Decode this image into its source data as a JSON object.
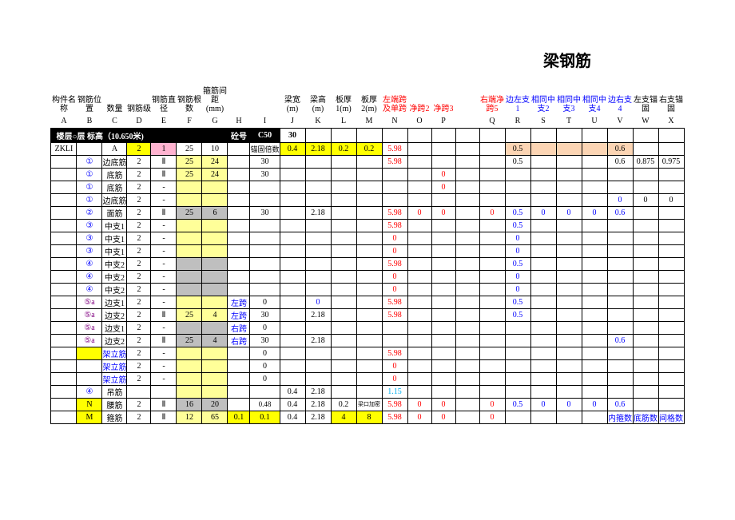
{
  "title": "梁钢筋",
  "header1": [
    "构件名称",
    "钢筋位置",
    "数量",
    "钢筋级",
    "钢筋直径",
    "钢筋根数",
    "箍筋间距(mm)",
    "",
    "梁宽(m)",
    "梁高(m)",
    "板厚1(m)",
    "板厚2(m)",
    "左端跨及单跨",
    "净跨2",
    "净跨3",
    "",
    "右端净跨5",
    "边左支1",
    "相同中支2",
    "相同中支3",
    "相同中支4",
    "边右支4",
    "左支锚固",
    "右支锚固"
  ],
  "header1_colors": [
    "",
    "",
    "",
    "",
    "",
    "",
    "",
    "",
    "",
    "",
    "",
    "",
    "red",
    "red",
    "red",
    "",
    "red",
    "blue",
    "blue",
    "blue",
    "blue",
    "blue",
    "",
    ""
  ],
  "letters": [
    "A",
    "B",
    "C",
    "D",
    "E",
    "F",
    "G",
    "H",
    "I",
    "J",
    "K",
    "L",
    "M",
    "N",
    "O",
    "P",
    "",
    "Q",
    "R",
    "S",
    "T",
    "U",
    "V",
    "W",
    "X"
  ],
  "floor_label": "楼层○层     标高（10.650米)",
  "floor_lab1": "砼号",
  "floor_lab2": "C50",
  "floor_30": "30",
  "rows": [
    {
      "cells": [
        "ZKLI",
        "",
        "A",
        "",
        "",
        "25",
        "10",
        "",
        "锚固倍数",
        "0.4",
        "2.18",
        "0.2",
        "0.2",
        "5.98",
        "",
        "",
        "",
        "",
        "0.5",
        "",
        "",
        "",
        "0.6",
        "",
        ""
      ],
      "bg": {
        "3": "bg-yellow",
        "4": "bg-pink",
        "9": "bg-yellow",
        "10": "bg-yellow",
        "11": "bg-yellow",
        "12": "bg-yellow",
        "18": "bg-orange",
        "19": "bg-orange",
        "20": "bg-orange",
        "21": "bg-orange",
        "22": "bg-orange"
      },
      "extra": {
        "3": "2",
        "4": "1"
      },
      "fg": {
        "13": "red"
      }
    },
    {
      "cells": [
        "",
        "①",
        "边底筋",
        "2",
        "Ⅱ",
        "25",
        "24",
        "",
        "30",
        "",
        "",
        "",
        "",
        "5.98",
        "",
        "",
        "",
        "",
        "0.5",
        "",
        "",
        "",
        "0.6",
        "0.875",
        "0.975"
      ],
      "bg": {
        "5": "bg-yellow2",
        "6": "bg-yellow2"
      },
      "fg": {
        "13": "red",
        "1": "blue"
      }
    },
    {
      "cells": [
        "",
        "①",
        "底筋",
        "2",
        "Ⅱ",
        "25",
        "24",
        "",
        "30",
        "",
        "",
        "",
        "",
        "",
        "",
        "0",
        "",
        "",
        "",
        "",
        "",
        "",
        "",
        "",
        ""
      ],
      "bg": {
        "5": "bg-yellow2",
        "6": "bg-yellow2"
      },
      "fg": {
        "15": "red",
        "1": "blue"
      }
    },
    {
      "cells": [
        "",
        "①",
        "底筋",
        "2",
        "-",
        "",
        "",
        "",
        "",
        "",
        "",
        "",
        "",
        "",
        "",
        "0",
        "",
        "",
        "",
        "",
        "",
        "",
        "",
        "",
        ""
      ],
      "bg": {
        "5": "bg-yellow2",
        "6": "bg-yellow2"
      },
      "fg": {
        "15": "red",
        "1": "blue"
      }
    },
    {
      "cells": [
        "",
        "①",
        "边底筋",
        "2",
        "-",
        "",
        "",
        "",
        "",
        "",
        "",
        "",
        "",
        "",
        "",
        "",
        "",
        "",
        "",
        "",
        "",
        "",
        "0",
        "0",
        "0"
      ],
      "bg": {
        "5": "bg-yellow2",
        "6": "bg-yellow2"
      },
      "fg": {
        "22": "blue",
        "23": "",
        "24": "",
        "1": "blue"
      }
    },
    {
      "cells": [
        "",
        "②",
        "面筋",
        "2",
        "Ⅱ",
        "25",
        "6",
        "",
        "30",
        "",
        "2.18",
        "",
        "",
        "5.98",
        "0",
        "0",
        "",
        "0",
        "0.5",
        "0",
        "0",
        "0",
        "0.6",
        "",
        ""
      ],
      "bg": {
        "5": "bg-grey",
        "6": "bg-grey"
      },
      "fg": {
        "13": "red",
        "14": "red",
        "15": "red",
        "17": "red",
        "18": "blue",
        "19": "blue",
        "20": "blue",
        "21": "blue",
        "22": "blue",
        "1": "blue"
      }
    },
    {
      "cells": [
        "",
        "③",
        "中支1",
        "2",
        "-",
        "",
        "",
        "",
        "",
        "",
        "",
        "",
        "",
        "5.98",
        "",
        "",
        "",
        "",
        "0.5",
        "",
        "",
        "",
        "",
        "",
        ""
      ],
      "bg": {
        "5": "bg-yellow2",
        "6": "bg-yellow2"
      },
      "fg": {
        "13": "red",
        "18": "blue",
        "1": "blue"
      }
    },
    {
      "cells": [
        "",
        "③",
        "中支1",
        "2",
        "-",
        "",
        "",
        "",
        "",
        "",
        "",
        "",
        "",
        "0",
        "",
        "",
        "",
        "",
        "0",
        "",
        "",
        "",
        "",
        "",
        ""
      ],
      "bg": {
        "5": "bg-yellow2",
        "6": "bg-yellow2"
      },
      "fg": {
        "13": "red",
        "18": "blue",
        "1": "blue"
      }
    },
    {
      "cells": [
        "",
        "③",
        "中支1",
        "2",
        "-",
        "",
        "",
        "",
        "",
        "",
        "",
        "",
        "",
        "0",
        "",
        "",
        "",
        "",
        "0",
        "",
        "",
        "",
        "",
        "",
        ""
      ],
      "bg": {
        "5": "bg-yellow2",
        "6": "bg-yellow2"
      },
      "fg": {
        "13": "red",
        "18": "blue",
        "1": "blue"
      }
    },
    {
      "cells": [
        "",
        "④",
        "中支2",
        "2",
        "-",
        "",
        "",
        "",
        "",
        "",
        "",
        "",
        "",
        "5.98",
        "",
        "",
        "",
        "",
        "0.5",
        "",
        "",
        "",
        "",
        "",
        ""
      ],
      "bg": {
        "5": "bg-grey",
        "6": "bg-grey"
      },
      "fg": {
        "13": "red",
        "18": "blue",
        "1": "blue"
      }
    },
    {
      "cells": [
        "",
        "④",
        "中支2",
        "2",
        "-",
        "",
        "",
        "",
        "",
        "",
        "",
        "",
        "",
        "0",
        "",
        "",
        "",
        "",
        "0",
        "",
        "",
        "",
        "",
        "",
        ""
      ],
      "bg": {
        "5": "bg-grey",
        "6": "bg-grey"
      },
      "fg": {
        "13": "red",
        "18": "blue",
        "1": "blue"
      }
    },
    {
      "cells": [
        "",
        "④",
        "中支2",
        "2",
        "-",
        "",
        "",
        "",
        "",
        "",
        "",
        "",
        "",
        "0",
        "",
        "",
        "",
        "",
        "0",
        "",
        "",
        "",
        "",
        "",
        ""
      ],
      "bg": {
        "5": "bg-grey",
        "6": "bg-grey"
      },
      "fg": {
        "13": "red",
        "18": "blue",
        "1": "blue"
      }
    },
    {
      "cells": [
        "",
        "⑤a",
        "边支1",
        "2",
        "-",
        "",
        "",
        "左跨",
        "0",
        "",
        "0",
        "",
        "",
        "5.98",
        "",
        "",
        "",
        "",
        "0.5",
        "",
        "",
        "",
        "",
        "",
        ""
      ],
      "bg": {
        "5": "bg-yellow2",
        "6": "bg-yellow2"
      },
      "fg": {
        "13": "red",
        "18": "blue",
        "1": "purple",
        "7": "blue",
        "10": "blue"
      }
    },
    {
      "cells": [
        "",
        "⑤a",
        "边支2",
        "2",
        "Ⅱ",
        "25",
        "4",
        "左跨",
        "30",
        "",
        "2.18",
        "",
        "",
        "5.98",
        "",
        "",
        "",
        "",
        "0.5",
        "",
        "",
        "",
        "",
        "",
        ""
      ],
      "bg": {
        "5": "bg-yellow2",
        "6": "bg-yellow2"
      },
      "fg": {
        "13": "red",
        "18": "blue",
        "1": "purple",
        "7": "blue"
      }
    },
    {
      "cells": [
        "",
        "⑤a",
        "边支1",
        "2",
        "-",
        "",
        "",
        "右跨",
        "0",
        "",
        "",
        "",
        "",
        "",
        "",
        "",
        "",
        "",
        "",
        "",
        "",
        "",
        "",
        "",
        ""
      ],
      "bg": {
        "5": "bg-grey",
        "6": "bg-grey"
      },
      "fg": {
        "1": "purple",
        "7": "blue"
      }
    },
    {
      "cells": [
        "",
        "⑤a",
        "边支2",
        "2",
        "Ⅱ",
        "25",
        "4",
        "右跨",
        "30",
        "",
        "2.18",
        "",
        "",
        "",
        "",
        "",
        "",
        "",
        "",
        "",
        "",
        "",
        "0.6",
        "",
        ""
      ],
      "bg": {
        "5": "bg-grey",
        "6": "bg-grey"
      },
      "fg": {
        "1": "purple",
        "7": "blue",
        "22": "blue"
      }
    },
    {
      "cells": [
        "",
        "",
        "架立筋",
        "2",
        "-",
        "",
        "",
        "",
        "0",
        "",
        "",
        "",
        "",
        "5.98",
        "",
        "",
        "",
        "",
        "",
        "",
        "",
        "",
        "",
        "",
        ""
      ],
      "bg": {
        "1": "bg-yellow",
        "5": "bg-yellow2",
        "6": "bg-yellow2"
      },
      "fg": {
        "13": "red",
        "2": "blue"
      }
    },
    {
      "cells": [
        "",
        "",
        "架立筋",
        "2",
        "-",
        "",
        "",
        "",
        "0",
        "",
        "",
        "",
        "",
        "0",
        "",
        "",
        "",
        "",
        "",
        "",
        "",
        "",
        "",
        "",
        ""
      ],
      "bg": {
        "5": "bg-yellow2",
        "6": "bg-yellow2"
      },
      "fg": {
        "13": "red",
        "2": "blue"
      }
    },
    {
      "cells": [
        "",
        "",
        "架立筋",
        "2",
        "-",
        "",
        "",
        "",
        "0",
        "",
        "",
        "",
        "",
        "0",
        "",
        "",
        "",
        "",
        "",
        "",
        "",
        "",
        "",
        "",
        ""
      ],
      "bg": {
        "5": "bg-yellow2",
        "6": "bg-yellow2"
      },
      "fg": {
        "13": "red",
        "2": "blue"
      }
    },
    {
      "cells": [
        "",
        "④",
        "吊筋",
        "",
        "",
        "",
        "",
        "",
        "",
        "0.4",
        "2.18",
        "",
        "",
        "1.15",
        "",
        "",
        "",
        "",
        "",
        "",
        "",
        "",
        "",
        "",
        ""
      ],
      "bg": {
        "5": "bg-yellow2",
        "6": "bg-yellow2"
      },
      "fg": {
        "13": "cyan",
        "1": "blue"
      }
    },
    {
      "cells": [
        "",
        "N",
        "腰筋",
        "2",
        "Ⅱ",
        "16",
        "20",
        "",
        "0.48",
        "0.4",
        "2.18",
        "0.2",
        "梁口加密",
        "5.98",
        "0",
        "0",
        "",
        "0",
        "0.5",
        "0",
        "0",
        "0",
        "0.6",
        "",
        ""
      ],
      "bg": {
        "1": "bg-yellow",
        "5": "bg-grey",
        "6": "bg-grey",
        "12": ""
      },
      "fg": {
        "13": "red",
        "14": "red",
        "15": "red",
        "17": "red",
        "18": "blue",
        "19": "blue",
        "20": "blue",
        "21": "blue",
        "22": "blue"
      }
    },
    {
      "cells": [
        "",
        "M",
        "箍筋",
        "2",
        "Ⅱ",
        "12",
        "65",
        "0.1",
        "0.1",
        "0.4",
        "2.18",
        "4",
        "8",
        "5.98",
        "0",
        "0",
        "",
        "0",
        "",
        "",
        "",
        "",
        "内箍数",
        "底筋数",
        "间格数"
      ],
      "bg": {
        "1": "bg-yellow",
        "5": "bg-yellow2",
        "6": "bg-yellow2",
        "7": "bg-yellow",
        "8": "bg-yellow",
        "11": "bg-yellow",
        "12": "bg-yellow"
      },
      "fg": {
        "13": "red",
        "14": "red",
        "15": "red",
        "17": "red",
        "22": "blue",
        "23": "blue",
        "24": "blue"
      }
    }
  ],
  "colors": {
    "red": "#ff0000",
    "blue": "#0000ff",
    "cyan": "#00b0f0",
    "purple": "#800080"
  }
}
